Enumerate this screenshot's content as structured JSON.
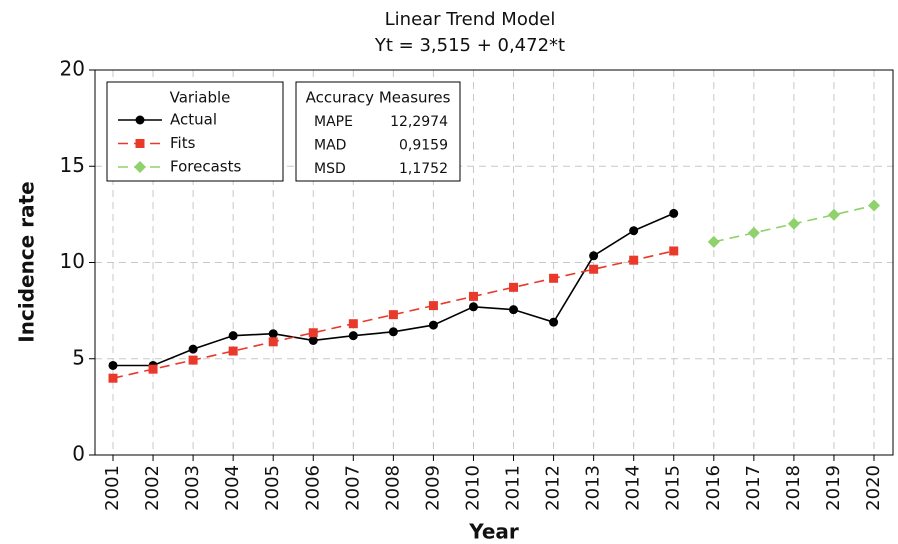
{
  "chart_data": {
    "type": "line",
    "title": "Linear Trend Model",
    "subtitle": "Yt = 3,515 + 0,472*t",
    "x_label": "Year",
    "y_label": "Incidence rate",
    "categories": [
      "2001",
      "2002",
      "2003",
      "2004",
      "2005",
      "2006",
      "2007",
      "2008",
      "2009",
      "2010",
      "2011",
      "2012",
      "2013",
      "2014",
      "2015",
      "2016",
      "2017",
      "2018",
      "2019",
      "2020"
    ],
    "ylim": [
      0,
      20
    ],
    "yticks": [
      0,
      5,
      10,
      15,
      20
    ],
    "grid": true,
    "legend_title": "Variable",
    "series": [
      {
        "name": "Actual",
        "color": "#000000",
        "marker": "circle",
        "dash": false,
        "values": [
          4.65,
          4.65,
          5.5,
          6.2,
          6.3,
          5.95,
          6.2,
          6.4,
          6.75,
          7.7,
          7.55,
          6.9,
          10.35,
          11.65,
          12.55,
          null,
          null,
          null,
          null,
          null
        ]
      },
      {
        "name": "Fits",
        "color": "#e8392b",
        "marker": "square",
        "dash": true,
        "values": [
          3.99,
          4.46,
          4.93,
          5.4,
          5.88,
          6.35,
          6.82,
          7.29,
          7.76,
          8.24,
          8.71,
          9.18,
          9.65,
          10.12,
          10.6,
          null,
          null,
          null,
          null,
          null
        ]
      },
      {
        "name": "Forecasts",
        "color": "#8fd16a",
        "marker": "diamond",
        "dash": true,
        "values": [
          null,
          null,
          null,
          null,
          null,
          null,
          null,
          null,
          null,
          null,
          null,
          null,
          null,
          null,
          null,
          11.07,
          11.54,
          12.01,
          12.48,
          12.96
        ]
      }
    ],
    "accuracy": {
      "title": "Accuracy Measures",
      "rows": [
        [
          "MAPE",
          "12,2974"
        ],
        [
          "MAD",
          "0,9159"
        ],
        [
          "MSD",
          "1,1752"
        ]
      ]
    }
  }
}
